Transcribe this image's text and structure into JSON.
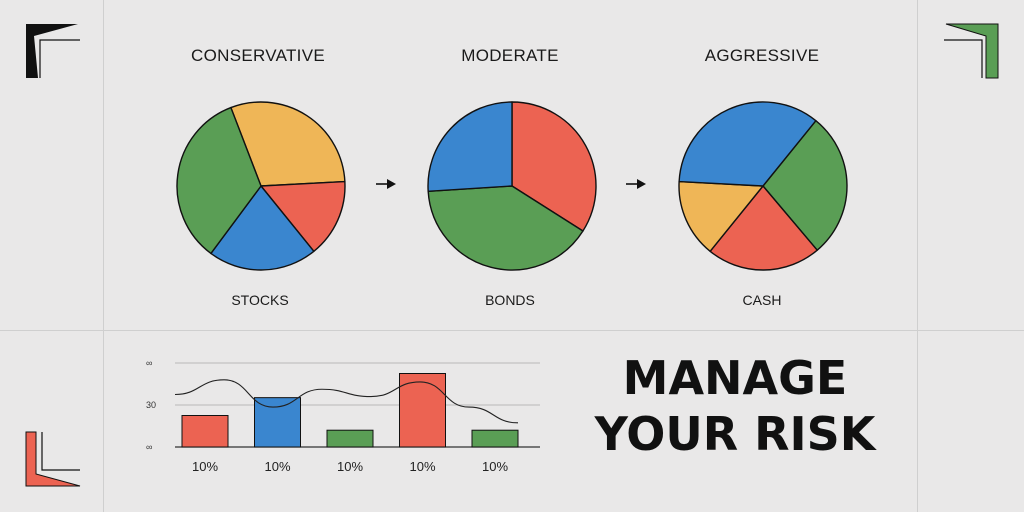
{
  "headline": {
    "line1": "MANAGE",
    "line2": "YOUR RISK"
  },
  "colors": {
    "stocks": "#ec6352",
    "bonds": "#3a86cf",
    "green": "#5a9e55",
    "yellow": "#efb657",
    "ink": "#111111",
    "background": "#e9e8e8"
  },
  "chart_data": [
    {
      "type": "pie",
      "title": "CONSERVATIVE",
      "caption": "STOCKS",
      "slices": [
        {
          "color": "#efb657",
          "value": 30
        },
        {
          "color": "#ec6352",
          "value": 15
        },
        {
          "color": "#3a86cf",
          "value": 21
        },
        {
          "color": "#5a9e55",
          "value": 34
        }
      ]
    },
    {
      "type": "pie",
      "title": "MODERATE",
      "caption": "BONDS",
      "slices": [
        {
          "color": "#ec6352",
          "value": 34
        },
        {
          "color": "#5a9e55",
          "value": 40
        },
        {
          "color": "#3a86cf",
          "value": 26
        }
      ]
    },
    {
      "type": "pie",
      "title": "AGGRESSIVE",
      "caption": "CASH",
      "slices": [
        {
          "color": "#5a9e55",
          "value": 28
        },
        {
          "color": "#ec6352",
          "value": 22
        },
        {
          "color": "#efb657",
          "value": 15
        },
        {
          "color": "#3a86cf",
          "value": 35
        }
      ]
    },
    {
      "type": "bar",
      "categories": [
        "10%",
        "10%",
        "10%",
        "10%",
        "10%"
      ],
      "values": [
        30,
        47,
        16,
        70,
        16
      ],
      "colors": [
        "#ec6352",
        "#3a86cf",
        "#5a9e55",
        "#ec6352",
        "#5a9e55"
      ],
      "ytick_labels": [
        "∞",
        "30",
        "∞"
      ],
      "ylim": [
        0,
        80
      ],
      "grid": true,
      "overlay_line": {
        "type": "line",
        "values": [
          50,
          64,
          38,
          55,
          48,
          62,
          38,
          23
        ]
      }
    }
  ]
}
